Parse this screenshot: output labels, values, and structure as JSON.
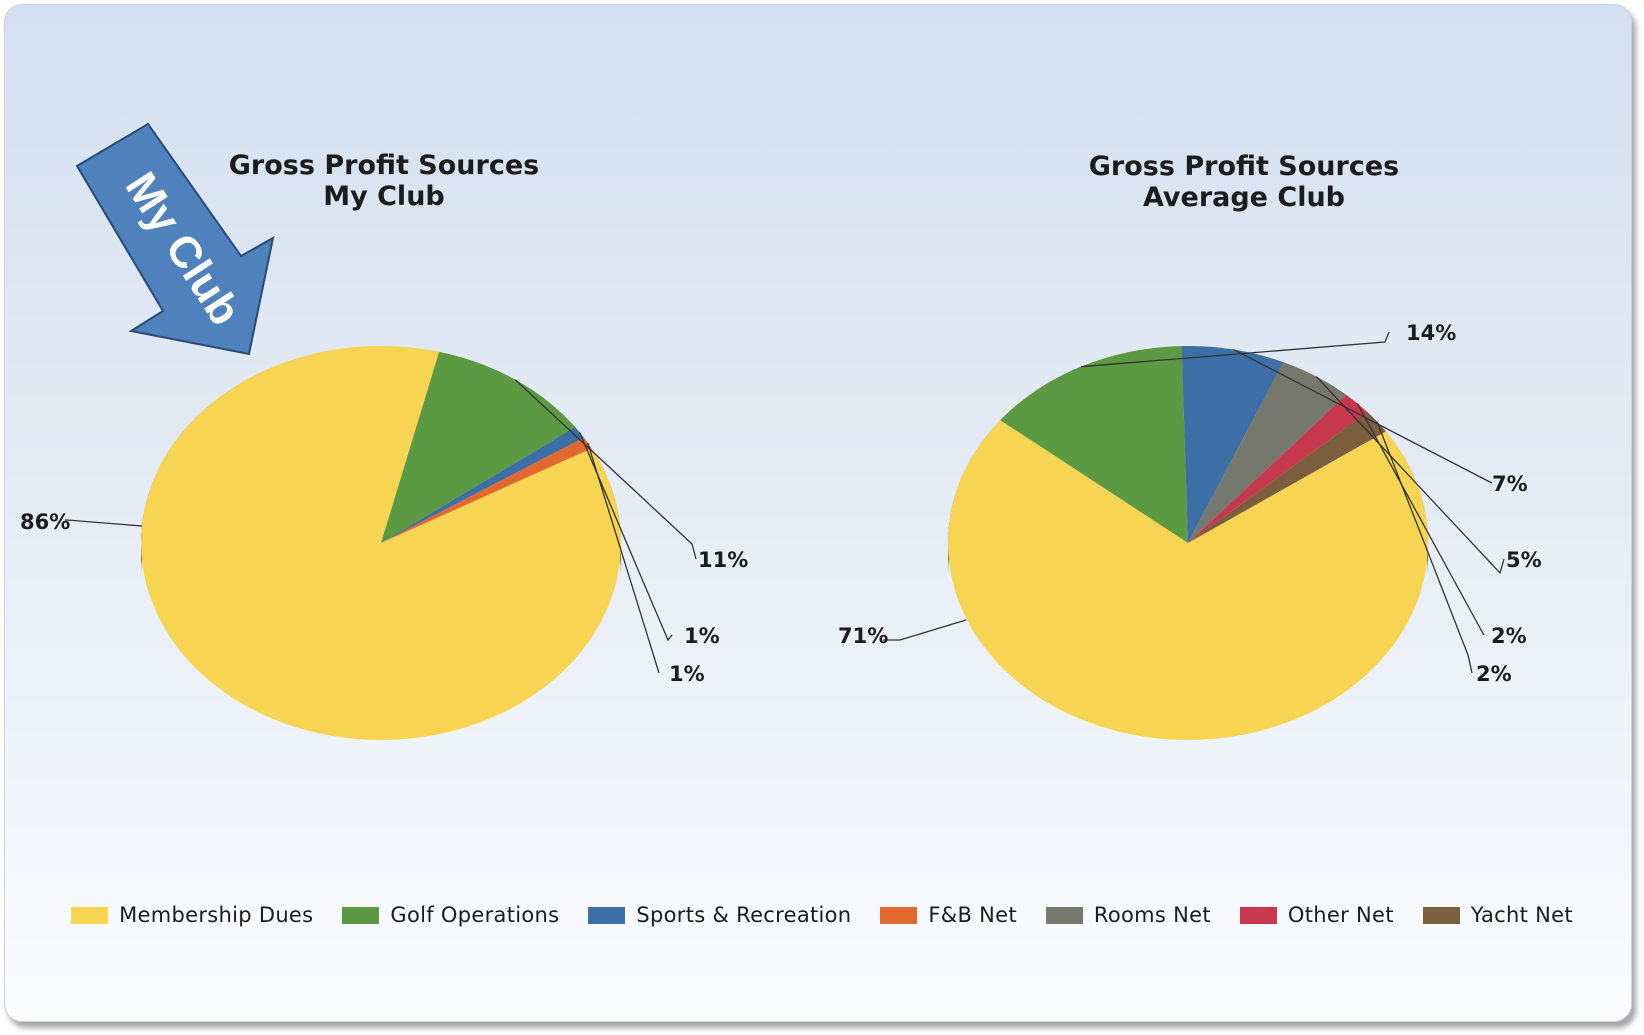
{
  "callout": {
    "text": "My Club",
    "color": "#4f81bd"
  },
  "chart_data": [
    {
      "type": "pie",
      "title": "Gross Profit Sources",
      "subtitle": "My Club",
      "categories": [
        "Membership Dues",
        "Golf Operations",
        "Sports & Recreation",
        "F&B Net",
        "Rooms Net",
        "Other Net",
        "Yacht Net"
      ],
      "values": [
        86,
        11,
        1,
        1,
        0,
        0,
        0
      ],
      "labels": [
        "86%",
        "11%",
        "1%",
        "1%",
        "",
        "",
        ""
      ],
      "style": "3d-pie"
    },
    {
      "type": "pie",
      "title": "Gross Profit Sources",
      "subtitle": "Average Club",
      "categories": [
        "Membership Dues",
        "Golf Operations",
        "Sports & Recreation",
        "F&B Net",
        "Rooms Net",
        "Other Net",
        "Yacht Net"
      ],
      "values": [
        71,
        14,
        7,
        0,
        5,
        2,
        2
      ],
      "labels": [
        "71%",
        "14%",
        "7%",
        "",
        "5%",
        "2%",
        "2%"
      ],
      "style": "3d-pie"
    }
  ],
  "legend": {
    "position": "bottom",
    "items": [
      {
        "label": "Membership Dues",
        "color": "#f7d553"
      },
      {
        "label": "Golf Operations",
        "color": "#5b9a43"
      },
      {
        "label": "Sports & Recreation",
        "color": "#3b6fa5"
      },
      {
        "label": "F&B Net",
        "color": "#e2692d"
      },
      {
        "label": "Rooms Net",
        "color": "#76786e"
      },
      {
        "label": "Other Net",
        "color": "#c7374d"
      },
      {
        "label": "Yacht Net",
        "color": "#7a5e3e"
      }
    ]
  }
}
